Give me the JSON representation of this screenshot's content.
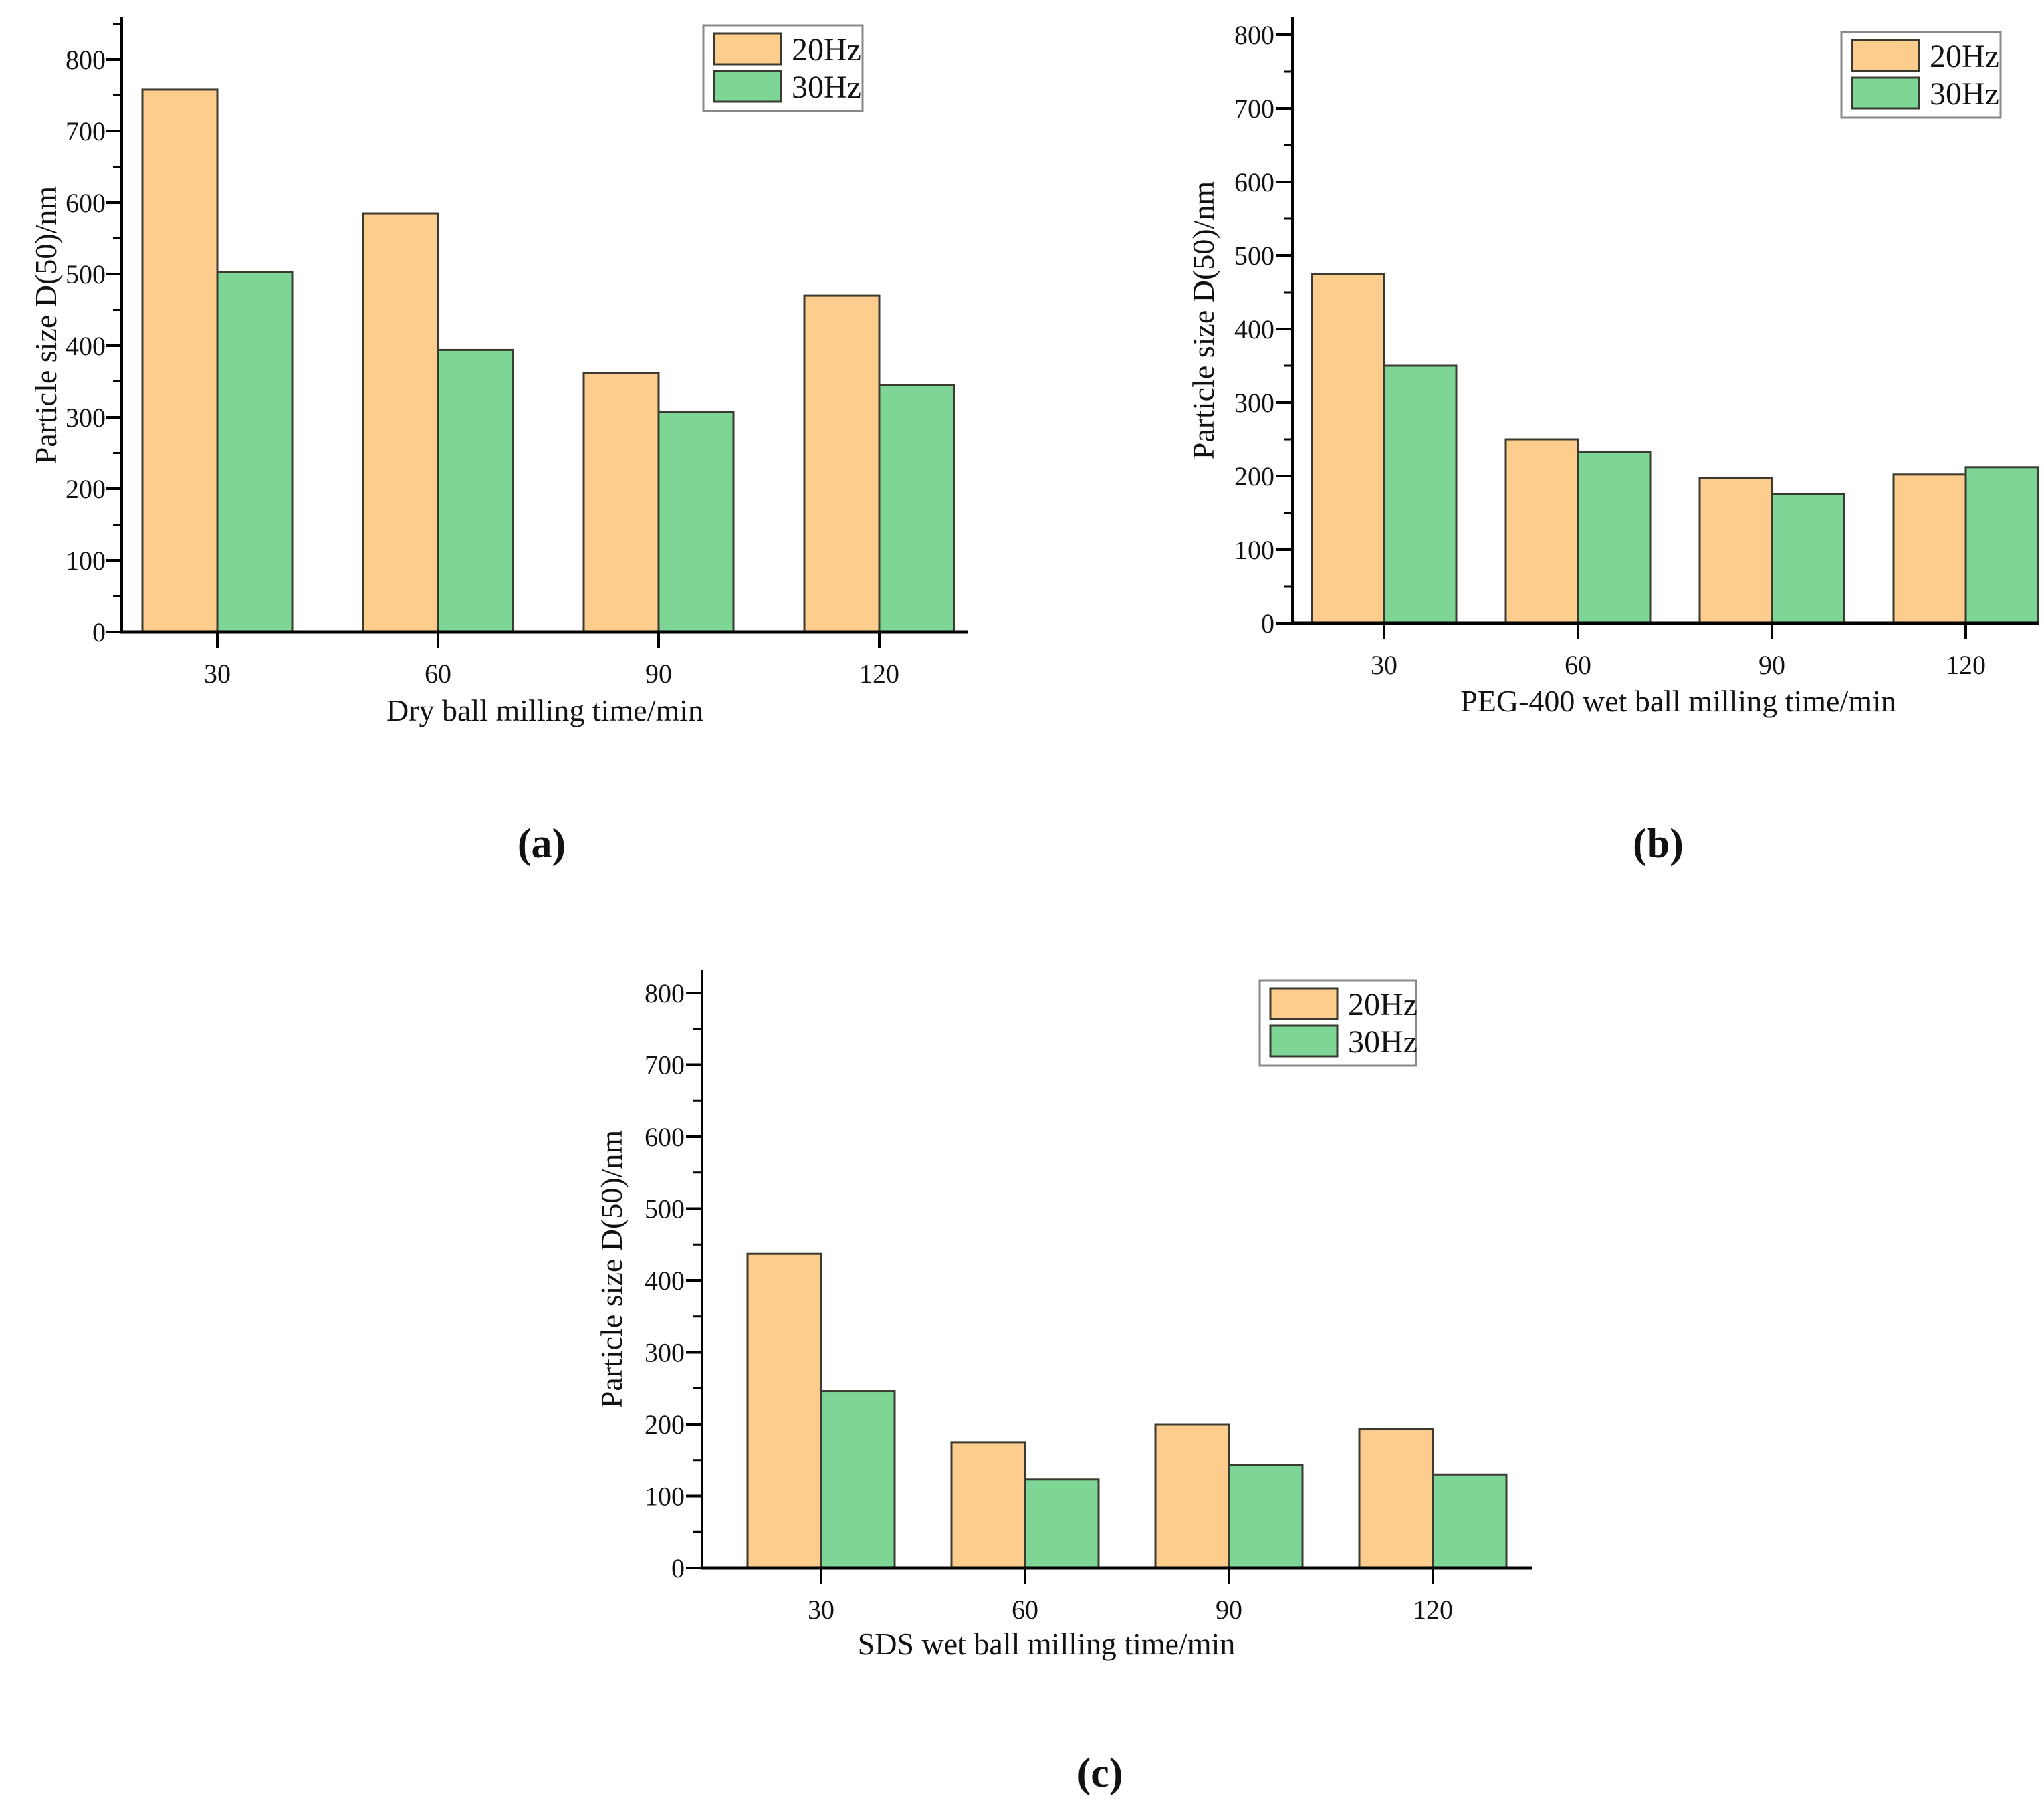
{
  "page": {
    "background": "#ffffff"
  },
  "palette": {
    "bar_20hz_fill": "#FDCD8E",
    "bar_30hz_fill": "#7DD596",
    "bar_stroke": "#3a3a30",
    "axis_color": "#000000",
    "legend_border": "#888888",
    "text_color": "#111111"
  },
  "legend": {
    "items": [
      {
        "label": "20Hz",
        "color_key": "bar_20hz_fill"
      },
      {
        "label": "30Hz",
        "color_key": "bar_30hz_fill"
      }
    ],
    "position": "top-right-inside"
  },
  "chart_data": [
    {
      "id": "a",
      "type": "bar",
      "caption": "(a)",
      "xlabel": "Dry ball milling time/min",
      "ylabel": "Particle size D(50)/nm",
      "categories": [
        "30",
        "60",
        "90",
        "120"
      ],
      "series": [
        {
          "name": "20Hz",
          "values": [
            758,
            585,
            362,
            470
          ]
        },
        {
          "name": "30Hz",
          "values": [
            503,
            394,
            307,
            345
          ]
        }
      ],
      "ylim": [
        0,
        800
      ],
      "ytick_step": 100,
      "ytick_labels": [
        "0",
        "100",
        "200",
        "300",
        "400",
        "500",
        "600",
        "700",
        "800"
      ],
      "grid": false,
      "legend_position": "top-right-inside"
    },
    {
      "id": "b",
      "type": "bar",
      "caption": "(b)",
      "xlabel": "PEG-400 wet ball milling time/min",
      "ylabel": "Particle size D(50)/nm",
      "categories": [
        "30",
        "60",
        "90",
        "120"
      ],
      "series": [
        {
          "name": "20Hz",
          "values": [
            475,
            250,
            197,
            202
          ]
        },
        {
          "name": "30Hz",
          "values": [
            350,
            233,
            175,
            212
          ]
        }
      ],
      "ylim": [
        0,
        800
      ],
      "ytick_step": 100,
      "ytick_labels": [
        "0",
        "100",
        "200",
        "300",
        "400",
        "500",
        "600",
        "700",
        "800"
      ],
      "grid": false,
      "legend_position": "top-right-inside"
    },
    {
      "id": "c",
      "type": "bar",
      "caption": "(c)",
      "xlabel": "SDS wet ball milling time/min",
      "ylabel": "Particle size D(50)/nm",
      "categories": [
        "30",
        "60",
        "90",
        "120"
      ],
      "series": [
        {
          "name": "20Hz",
          "values": [
            437,
            175,
            200,
            193
          ]
        },
        {
          "name": "30Hz",
          "values": [
            246,
            123,
            143,
            130
          ]
        }
      ],
      "ylim": [
        0,
        800
      ],
      "ytick_step": 100,
      "ytick_labels": [
        "0",
        "100",
        "200",
        "300",
        "400",
        "500",
        "600",
        "700",
        "800"
      ],
      "grid": false,
      "legend_position": "top-right-inside"
    }
  ]
}
